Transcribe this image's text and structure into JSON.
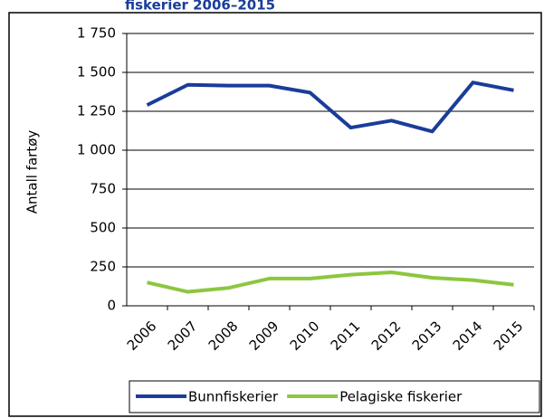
{
  "chart_data": {
    "type": "line",
    "title": "fiskerier 2006–2015",
    "y_label": "Antall fartøy",
    "categories": [
      "2006",
      "2007",
      "2008",
      "2009",
      "2010",
      "2011",
      "2012",
      "2013",
      "2014",
      "2015"
    ],
    "series": [
      {
        "name": "Bunnfiskerier",
        "color": "#1a3d99",
        "values": [
          1290,
          1420,
          1415,
          1415,
          1370,
          1145,
          1190,
          1120,
          1435,
          1385
        ]
      },
      {
        "name": "Pelagiske fiskerier",
        "color": "#8dc63f",
        "values": [
          150,
          90,
          115,
          175,
          175,
          200,
          215,
          180,
          165,
          135
        ]
      }
    ],
    "ylim": [
      0,
      1750
    ],
    "yticks": [
      0,
      250,
      500,
      750,
      {
        "value": 1000,
        "label": "1 000"
      },
      {
        "value": 1250,
        "label": "1 250"
      },
      {
        "value": 1500,
        "label": "1 500"
      },
      {
        "value": 1750,
        "label": "1 750"
      }
    ],
    "grid": true,
    "legend": "bottom"
  }
}
